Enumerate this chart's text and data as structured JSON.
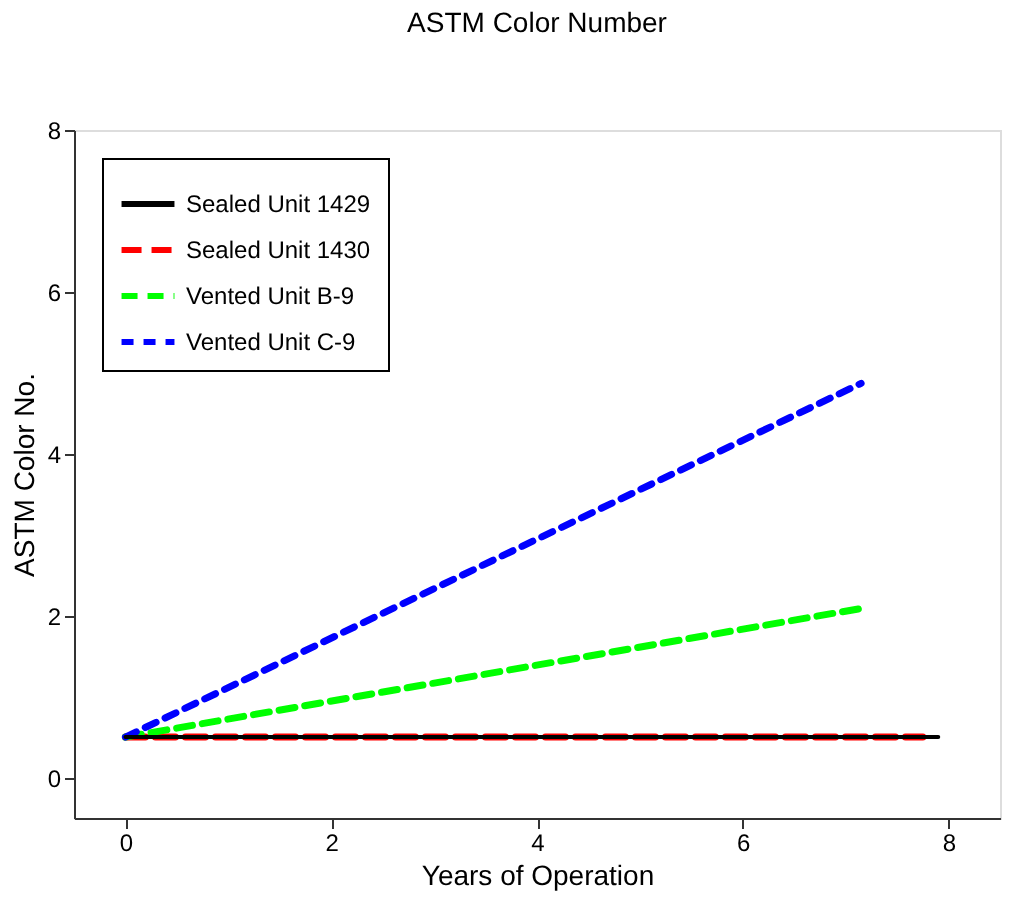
{
  "chart_data": {
    "type": "line",
    "title": "ASTM Color Number",
    "xlabel": "Years of Operation",
    "ylabel": "ASTM Color No.",
    "xlim": [
      -0.5,
      8.5
    ],
    "xticks": [
      0,
      2,
      4,
      6,
      8
    ],
    "ylim": [
      -0.5,
      8
    ],
    "yticks": [
      0,
      2,
      4,
      6,
      8
    ],
    "grid": false,
    "legend": "top left",
    "marker": "none",
    "series": [
      {
        "name": "Sealed Unit 1429",
        "color": "#000000",
        "line_style": "solid",
        "x": [
          0,
          7.9
        ],
        "values": [
          0.5,
          0.5
        ]
      },
      {
        "name": "Sealed Unit 1430",
        "color": "#ff0000",
        "line_style": "dashed",
        "x": [
          0,
          7.75
        ],
        "values": [
          0.5,
          0.5
        ]
      },
      {
        "name": "Vented Unit B-9",
        "color": "#00ff00",
        "line_style": "dashed",
        "x": [
          0,
          7.2
        ],
        "values": [
          0.5,
          2.1
        ]
      },
      {
        "name": "Vented Unit C-9",
        "color": "#0000ff",
        "line_style": "dashed",
        "x": [
          0,
          7.15
        ],
        "values": [
          0.5,
          4.87
        ]
      }
    ]
  }
}
